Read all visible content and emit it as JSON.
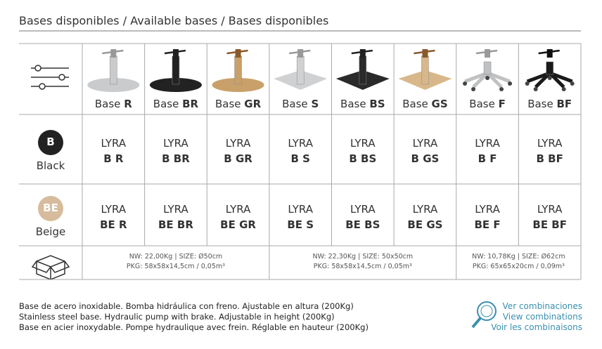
{
  "header": {
    "title": "Bases disponibles / Available bases / Bases disponibles"
  },
  "table": {
    "columns": [
      {
        "prefix": "Base",
        "code": "R"
      },
      {
        "prefix": "Base",
        "code": "BR"
      },
      {
        "prefix": "Base",
        "code": "GR"
      },
      {
        "prefix": "Base",
        "code": "S"
      },
      {
        "prefix": "Base",
        "code": "BS"
      },
      {
        "prefix": "Base",
        "code": "GS"
      },
      {
        "prefix": "Base",
        "code": "F"
      },
      {
        "prefix": "Base",
        "code": "BF"
      }
    ],
    "rows": [
      {
        "badge": "B",
        "label": "Black",
        "cells": [
          {
            "model": "LYRA",
            "code": "B R"
          },
          {
            "model": "LYRA",
            "code": "B BR"
          },
          {
            "model": "LYRA",
            "code": "B GR"
          },
          {
            "model": "LYRA",
            "code": "B S"
          },
          {
            "model": "LYRA",
            "code": "B BS"
          },
          {
            "model": "LYRA",
            "code": "B GS"
          },
          {
            "model": "LYRA",
            "code": "B F"
          },
          {
            "model": "LYRA",
            "code": "B BF"
          }
        ]
      },
      {
        "badge": "BE",
        "label": "Beige",
        "cells": [
          {
            "model": "LYRA",
            "code": "BE R"
          },
          {
            "model": "LYRA",
            "code": "BE BR"
          },
          {
            "model": "LYRA",
            "code": "BE GR"
          },
          {
            "model": "LYRA",
            "code": "BE S"
          },
          {
            "model": "LYRA",
            "code": "BE BS"
          },
          {
            "model": "LYRA",
            "code": "BE GS"
          },
          {
            "model": "LYRA",
            "code": "BE F"
          },
          {
            "model": "LYRA",
            "code": "BE BF"
          }
        ]
      }
    ],
    "specs": [
      {
        "weight": "NW: 22,00Kg | SIZE: Ø50cm",
        "package": "PKG: 58x58x14,5cm / 0,05m³"
      },
      {
        "weight": "NW: 22,30Kg | SIZE: 50x50cm",
        "package": "PKG: 58x58x14,5cm / 0,05m³"
      },
      {
        "weight": "NW: 10,78Kg | SIZE: Ø62cm",
        "package": "PKG: 65x65x20cm / 0,09m³"
      }
    ]
  },
  "footer": {
    "description": [
      "Base de acero inoxidable. Bomba hidráulica con freno. Ajustable en altura (200Kg)",
      "Stainless steel base. Hydraulic pump with brake. Adjustable in height (200Kg)",
      "Base en acier inoxydable. Pompe hydraulique avec frein. Réglable en hauteur (200Kg)"
    ],
    "links": [
      "Ver combinaciones",
      "View combinations",
      "Voir les combinaisons"
    ]
  }
}
